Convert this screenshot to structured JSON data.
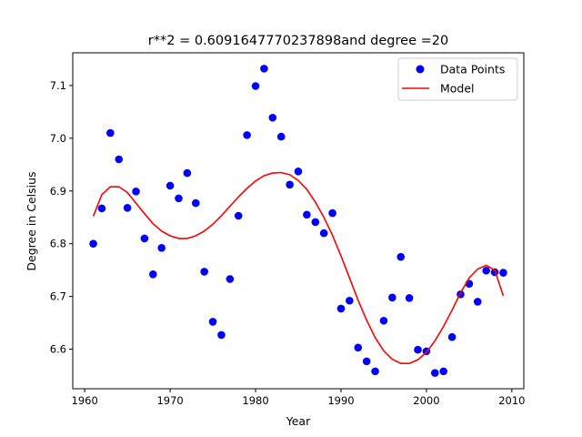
{
  "chart_data": {
    "type": "scatter",
    "title": "r**2 = 0.6091647770237898and degree =20",
    "xlabel": "Year",
    "ylabel": "Degree in Celsius",
    "xlim": [
      1958.6,
      2011.4
    ],
    "ylim": [
      6.525,
      7.162
    ],
    "xticks": [
      1960,
      1970,
      1980,
      1990,
      2000,
      2010
    ],
    "yticks": [
      6.6,
      6.7,
      6.8,
      6.9,
      7.0,
      7.1
    ],
    "xtick_labels": [
      "1960",
      "1970",
      "1980",
      "1990",
      "2000",
      "2010"
    ],
    "ytick_labels": [
      "6.6",
      "6.7",
      "6.8",
      "6.9",
      "7.0",
      "7.1"
    ],
    "grid": false,
    "legend_position": "top-right",
    "legend": {
      "points_label": "Data Points",
      "model_label": "Model"
    },
    "colors": {
      "points": "#0000ff",
      "model": "#ff0000"
    },
    "x": [
      1961,
      1962,
      1963,
      1964,
      1965,
      1966,
      1967,
      1968,
      1969,
      1970,
      1971,
      1972,
      1973,
      1974,
      1975,
      1976,
      1977,
      1978,
      1979,
      1980,
      1981,
      1982,
      1983,
      1984,
      1985,
      1986,
      1987,
      1988,
      1989,
      1990,
      1991,
      1992,
      1993,
      1994,
      1995,
      1996,
      1997,
      1998,
      1999,
      2000,
      2001,
      2002,
      2003,
      2004,
      2005,
      2006,
      2007,
      2008,
      2009
    ],
    "points": [
      6.8,
      6.867,
      7.01,
      6.96,
      6.868,
      6.899,
      6.81,
      6.742,
      6.792,
      6.91,
      6.886,
      6.934,
      6.877,
      6.747,
      6.652,
      6.627,
      6.733,
      6.853,
      7.006,
      7.099,
      7.132,
      7.039,
      7.003,
      6.912,
      6.937,
      6.855,
      6.841,
      6.82,
      6.858,
      6.677,
      6.692,
      6.603,
      6.577,
      6.558,
      6.654,
      6.698,
      6.775,
      6.697,
      6.599,
      6.596,
      6.555,
      6.558,
      6.623,
      6.704,
      6.724,
      6.69,
      6.749,
      6.746,
      6.745
    ],
    "model": [
      6.852,
      6.893,
      6.908,
      6.908,
      6.897,
      6.877,
      6.857,
      6.838,
      6.824,
      6.815,
      6.81,
      6.81,
      6.815,
      6.824,
      6.837,
      6.853,
      6.871,
      6.889,
      6.905,
      6.919,
      6.929,
      6.934,
      6.935,
      6.931,
      6.92,
      6.903,
      6.879,
      6.85,
      6.816,
      6.777,
      6.735,
      6.693,
      6.655,
      6.622,
      6.597,
      6.581,
      6.573,
      6.573,
      6.58,
      6.594,
      6.616,
      6.643,
      6.674,
      6.707,
      6.735,
      6.752,
      6.759,
      6.75,
      6.701
    ]
  }
}
